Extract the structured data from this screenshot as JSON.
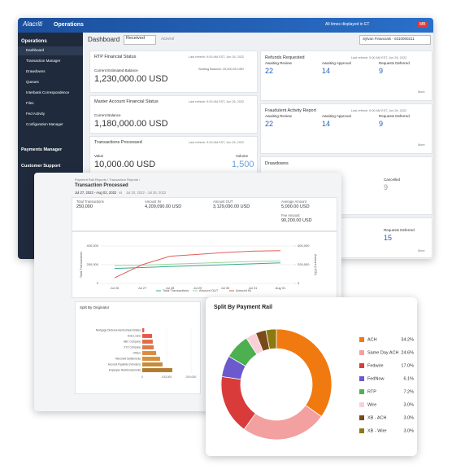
{
  "header": {
    "logo": "Alacriti",
    "app": "Operations",
    "timezone": "All times displayed in ET",
    "user": "MB"
  },
  "sidebar": {
    "section": "Operations",
    "items": [
      "Dashboard",
      "Transaction Manager",
      "Drawdowns",
      "Queues",
      "Interbank Correspondence",
      "Files",
      "Fed Activity",
      "Configuration Manager"
    ],
    "sections": [
      "Payments Manager",
      "Customer Support"
    ]
  },
  "toolbar": {
    "title": "Dashboard",
    "status": "Received",
    "filter": "ACH/All",
    "institution": "Sylvan Financials - 0310000211"
  },
  "cards": [
    {
      "title": "RTP Financial Status",
      "refresh": "Last refresh: 9:00 AM EST, Jun 26, 2022",
      "label": "Current Estimated Balance",
      "value": "1,230,000.00 USD",
      "note": "Starting Balance: 25,000.00 USD"
    },
    {
      "title": "Master Account Financial Status",
      "refresh": "Last refresh: 9:00 AM EST, Jun 26, 2022",
      "label": "Current Balance",
      "value": "1,180,000.00 USD"
    },
    {
      "title": "Transactions Processed",
      "refresh": "Last refresh: 9:00 AM EST, Jun 26, 2022",
      "label": "Value",
      "value": "10,000.00 USD",
      "label2": "Volume",
      "value2": "1,500"
    }
  ],
  "queues": [
    {
      "title": "Refunds Requested",
      "refresh": "Last refresh: 9:00 AM EST, Jun 26, 2022",
      "labels": [
        "Awaiting Review",
        "Awaiting Approval",
        "Requests Deferred"
      ],
      "counts": [
        22,
        14,
        9
      ],
      "more": "More"
    },
    {
      "title": "Fraudulent Activity Report",
      "refresh": "Last refresh: 9:00 AM EST, Jun 26, 2022",
      "labels": [
        "Awaiting Review",
        "Awaiting Approval",
        "Requests Deferred"
      ],
      "counts": [
        22,
        14,
        9
      ],
      "more": "More"
    },
    {
      "title": "Drawdowns",
      "labels": [
        "Cancelled"
      ],
      "counts": [
        9
      ]
    },
    {
      "labels": [
        "Requests Deferred"
      ],
      "counts": [
        15
      ],
      "more": "More"
    }
  ],
  "report": {
    "breadcrumb": "Payment Rail Reports / Transaction Reports /",
    "title": "Transaction Processed",
    "period": "Jul 27, 2022 - Aug 02, 2022",
    "vs": "vs",
    "compare": "Jul 20, 2022 - Jul 26, 2022",
    "stats": [
      {
        "label": "Total Transactions",
        "value": "250,000"
      },
      {
        "label": "Amount IN",
        "value": "4,209,090.00 USD"
      },
      {
        "label": "Amount OUT",
        "value": "3,129,090.00 USD"
      },
      {
        "label": "Average Amount",
        "value": "5,000.00 USD"
      },
      {
        "label": "Fee Amount",
        "value": "90,200.00 USD"
      }
    ]
  },
  "chart_data": [
    {
      "type": "line",
      "categories": [
        "Jul 26",
        "Jul 27",
        "Jul 28",
        "Jul 29",
        "Jul 30",
        "Jul 31",
        "Aug 01"
      ],
      "ylabel": "Total Transactions",
      "y2label": "Amount (USD)",
      "ylim": [
        0,
        400000
      ],
      "yticks": [
        0,
        {
          "value": 200000,
          "label": "200,000"
        },
        {
          "value": 400000,
          "label": "400,000"
        }
      ],
      "y2lim": [
        0,
        400000
      ],
      "y2ticks": [
        0,
        {
          "value": 200000,
          "label": "200,000"
        },
        {
          "value": 400000,
          "label": "400,000"
        }
      ],
      "grid": true,
      "series": [
        {
          "name": "Total Transactions",
          "color": "#3aa88f",
          "values": [
            160000,
            170000,
            180000,
            190000,
            200000,
            210000,
            220000
          ]
        },
        {
          "name": "Amount OUT",
          "color": "#9ad79a",
          "axis": "y2",
          "values": [
            190000,
            195000,
            205000,
            215000,
            225000,
            235000,
            240000
          ]
        },
        {
          "name": "Amount IN",
          "color": "#e0605a",
          "axis": "y2",
          "values": [
            60000,
            200000,
            290000,
            310000,
            330000,
            345000,
            350000
          ]
        }
      ]
    },
    {
      "type": "bar",
      "orientation": "horizontal",
      "title": "Split By Originator",
      "categories": [
        "Mortgage Disbursements (Real Estate)",
        "Auto Loans",
        "ABC Company",
        "XYZ Company",
        "Others",
        "Merchant Settlements",
        "Account Payables (Vendors)",
        "Employee Reimbursements"
      ],
      "values": [
        8000,
        40000,
        43000,
        47000,
        57000,
        73000,
        83000,
        123000
      ],
      "colors": [
        "#e8584f",
        "#e8584f",
        "#e56a48",
        "#e07a44",
        "#dc8a40",
        "#d4903c",
        "#c98a38",
        "#b07a30"
      ],
      "xlim": [
        0,
        200000
      ],
      "xticks": [
        0,
        {
          "value": 100000,
          "label": "100,000"
        },
        {
          "value": 200000,
          "label": "200,000"
        }
      ]
    },
    {
      "type": "pie",
      "title": "Split By Payment Rail",
      "categories": [
        "ACH",
        "Same Day ACH",
        "Fedwire",
        "FedNow",
        "RTP",
        "Wire",
        "XB - ACH",
        "XB - Wire"
      ],
      "values": [
        34.2,
        24.6,
        17.0,
        6.1,
        7.2,
        3.0,
        3.0,
        3.0
      ],
      "value_labels": [
        "34.2%",
        "24.6%",
        "17.0%",
        "6.1%",
        "7.2%",
        "3.0%",
        "3.0%",
        "3.0%"
      ],
      "colors": [
        "#f07a10",
        "#f3a0a0",
        "#d93b3b",
        "#6a5acd",
        "#4caf50",
        "#f9cfd8",
        "#7a4a1a",
        "#8a7a10"
      ]
    }
  ]
}
